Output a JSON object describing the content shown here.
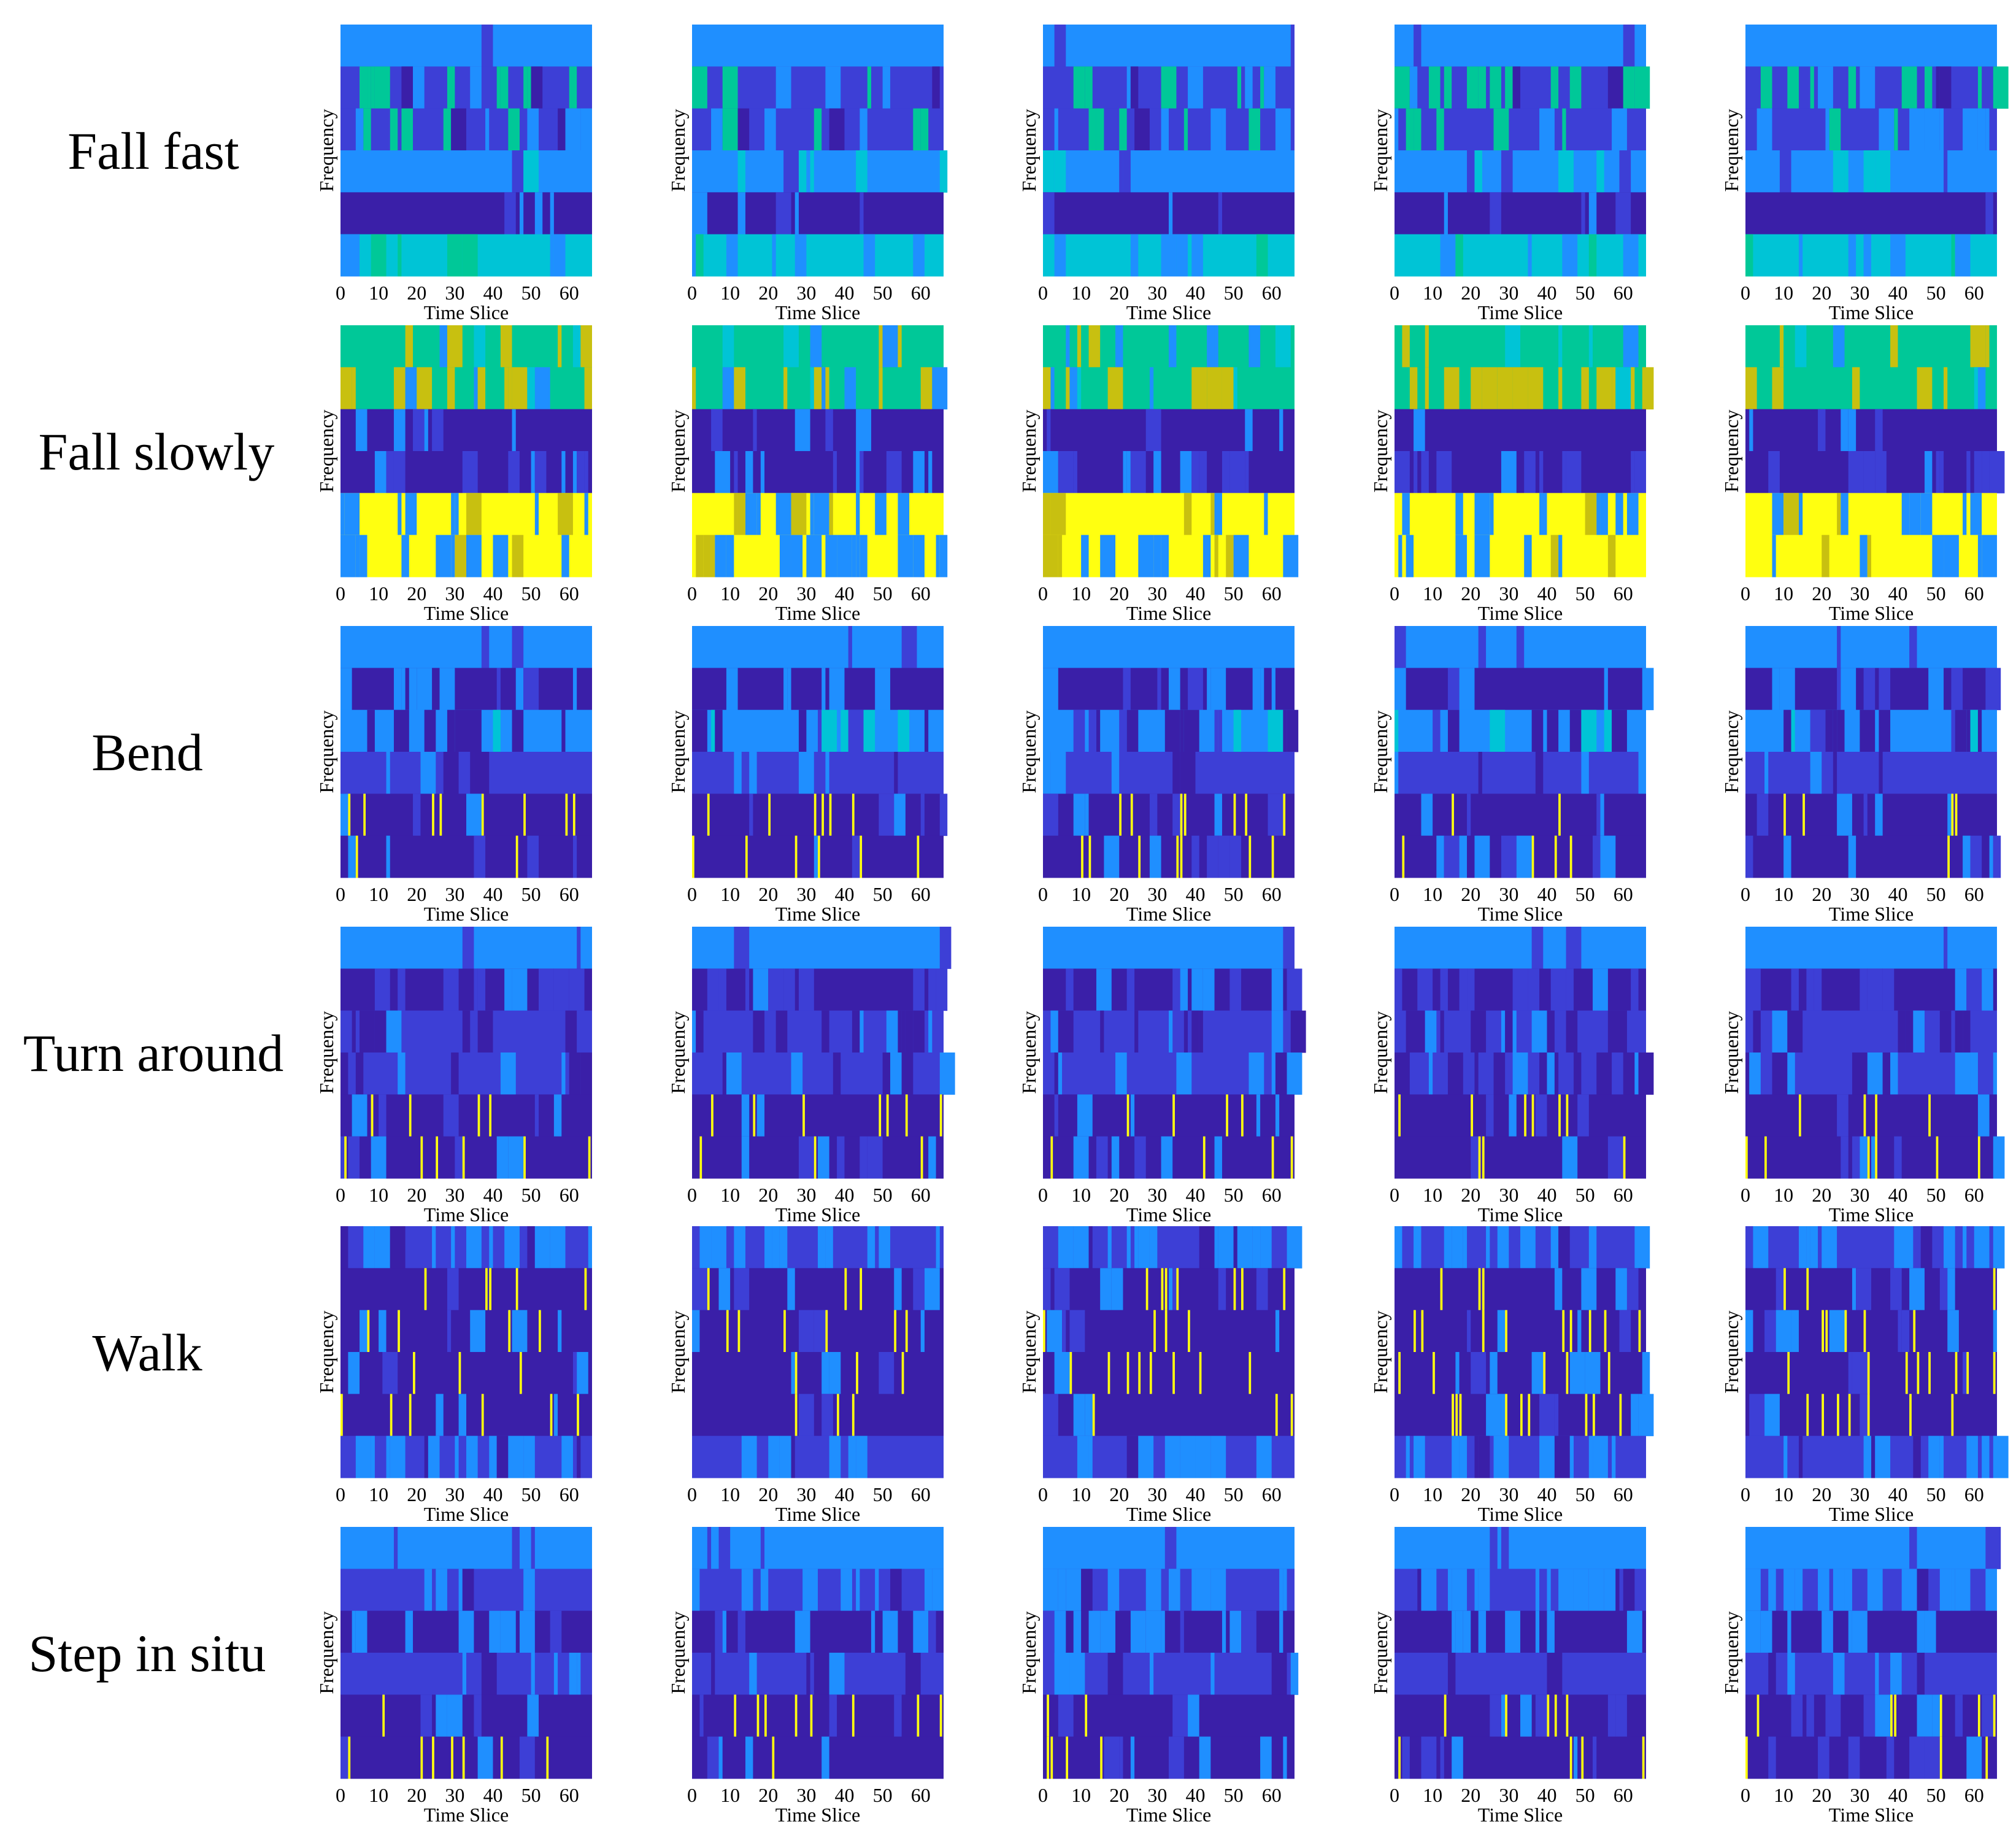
{
  "chart_data": {
    "type": "heatmap",
    "description_rows": [
      "Fall fast",
      "Fall slowly",
      "Bend",
      "Turn around",
      "Walk",
      "Step in situ"
    ],
    "samples_per_row": 5,
    "xlabel": "Time Slice",
    "ylabel": "Frequency",
    "xlim": [
      0,
      66
    ],
    "xticks": [
      "0",
      "10",
      "20",
      "30",
      "40",
      "50",
      "60"
    ],
    "frequency_bands": 6,
    "colormap": [
      "#3a1fa8",
      "#3d3fd6",
      "#1f8fff",
      "#00c4d6",
      "#00c898",
      "#c8c010",
      "#ffff10"
    ],
    "rows": [
      {
        "label": "Fall fast",
        "base": [
          2,
          1,
          1,
          2,
          0,
          3
        ],
        "accent": [
          4,
          4,
          4,
          2,
          0,
          3
        ],
        "seed": 11
      },
      {
        "label": "Fall slowly",
        "base": [
          4,
          4,
          0,
          0,
          6,
          6
        ],
        "accent": [
          4,
          5,
          0,
          1,
          2,
          2
        ],
        "seed": 23
      },
      {
        "label": "Bend",
        "base": [
          2,
          0,
          2,
          1,
          0,
          0
        ],
        "accent": [
          1,
          2,
          0,
          1,
          6,
          6
        ],
        "seed": 37
      },
      {
        "label": "Turn around",
        "base": [
          2,
          0,
          1,
          1,
          0,
          0
        ],
        "accent": [
          1,
          1,
          0,
          0,
          6,
          6
        ],
        "seed": 41
      },
      {
        "label": "Walk",
        "base": [
          1,
          0,
          0,
          0,
          0,
          1
        ],
        "accent": [
          2,
          6,
          6,
          6,
          6,
          2
        ],
        "seed": 53
      },
      {
        "label": "Step in situ",
        "base": [
          2,
          1,
          0,
          1,
          0,
          0
        ],
        "accent": [
          1,
          2,
          2,
          1,
          6,
          6
        ],
        "seed": 67
      }
    ]
  }
}
